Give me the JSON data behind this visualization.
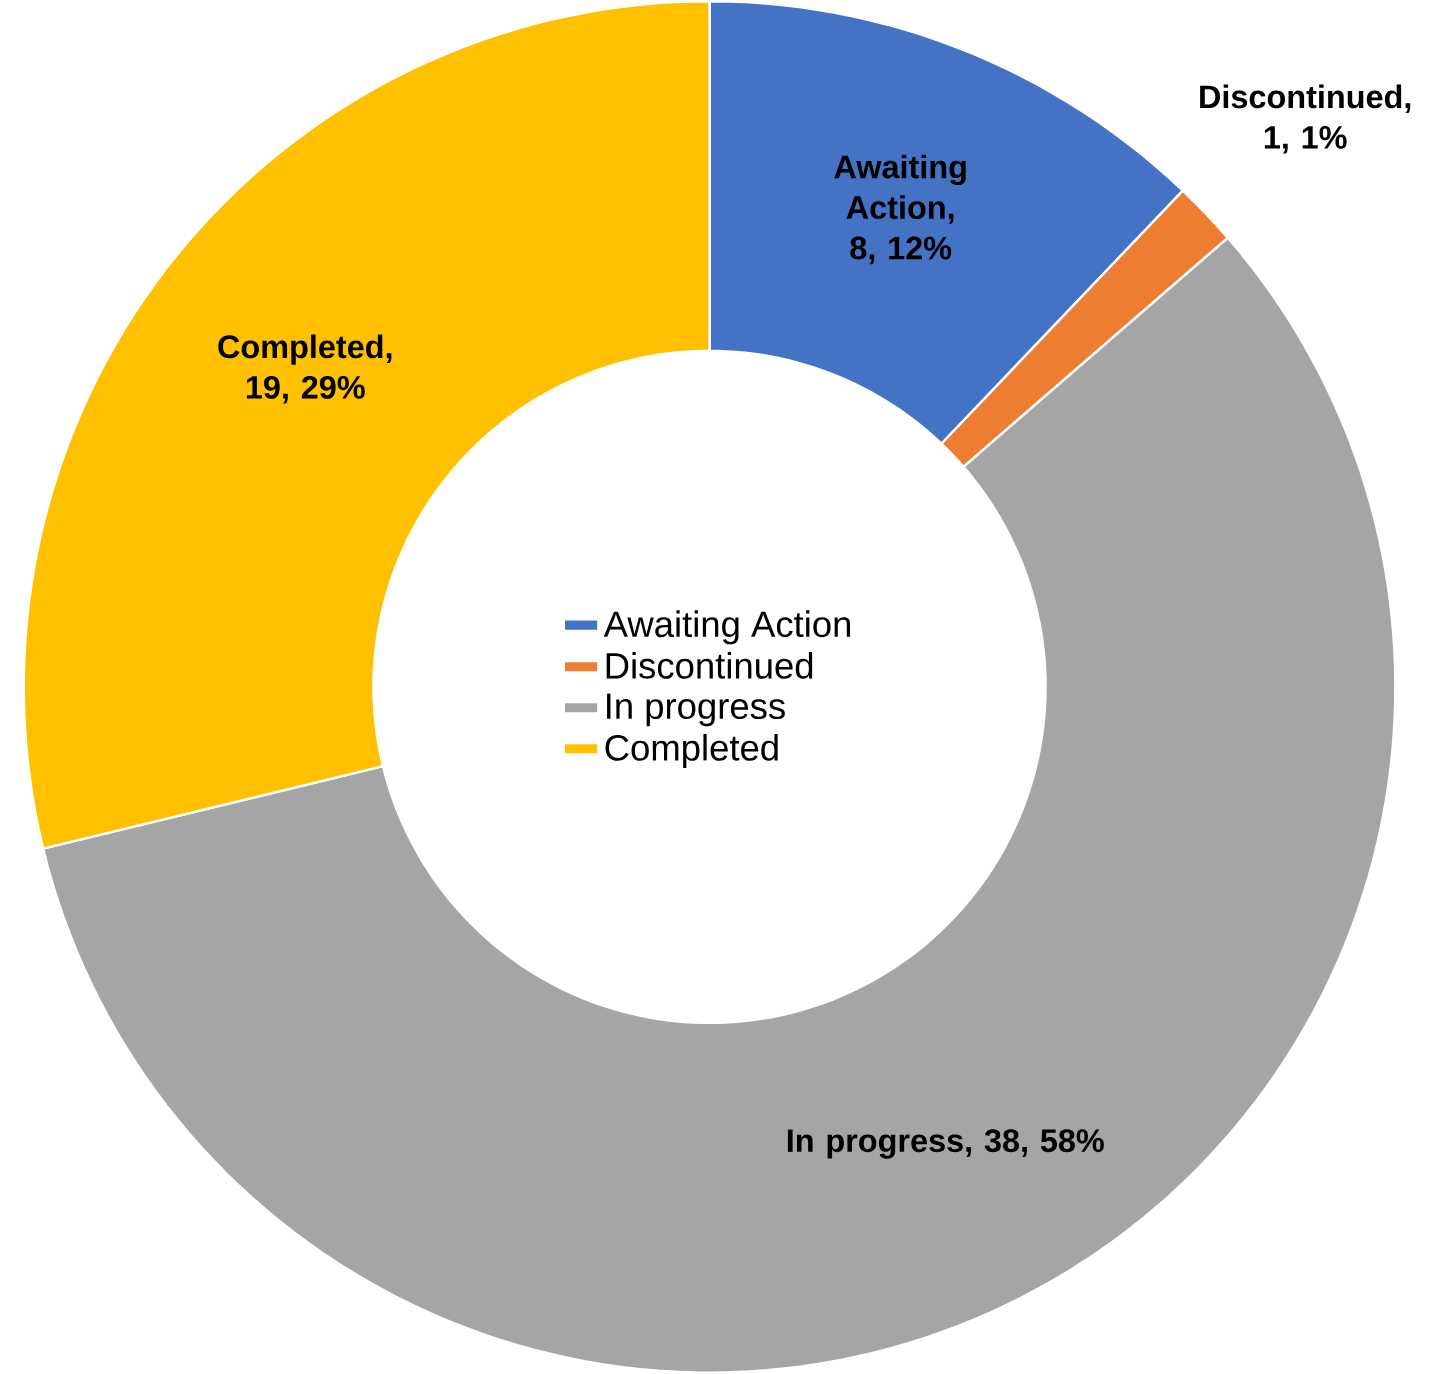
{
  "chart_data": {
    "type": "donut",
    "categories": [
      "Awaiting Action",
      "Discontinued",
      "In progress",
      "Completed"
    ],
    "values": [
      8,
      1,
      38,
      19
    ],
    "colors": [
      "#4472c4",
      "#ed7d31",
      "#a5a5a5",
      "#ffc000"
    ],
    "value_labels": [
      "Awaiting Action, 8, 12%",
      "Discontinued, 1, 1%",
      "In progress, 38, 58%",
      "Completed, 19, 29%"
    ],
    "legend": "center"
  }
}
